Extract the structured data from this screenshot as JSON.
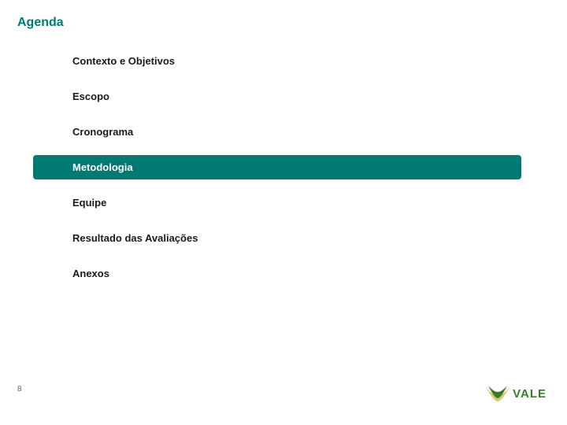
{
  "title": {
    "text": "Agenda",
    "color": "#007a73",
    "fontsize": 16
  },
  "agenda": {
    "items": [
      {
        "label": "Contexto e Objetivos",
        "highlighted": false
      },
      {
        "label": "Escopo",
        "highlighted": false
      },
      {
        "label": "Cronograma",
        "highlighted": false
      },
      {
        "label": "Metodologia",
        "highlighted": true
      },
      {
        "label": "Equipe",
        "highlighted": false
      },
      {
        "label": "Resultado das Avaliações",
        "highlighted": false
      },
      {
        "label": "Anexos",
        "highlighted": false
      }
    ],
    "item_fontsize": 13,
    "item_color": "#1a1a1a",
    "highlight_bg": "#007a73",
    "highlight_fg": "#ffffff",
    "highlight_width": 620
  },
  "footer": {
    "page_number": "8",
    "page_number_fontsize": 10,
    "logo_text": "VALE",
    "logo_text_color": "#3a7a2e",
    "logo_text_fontsize": 15,
    "logo_v_dark": "#3a7a2e",
    "logo_v_light": "#d9c96a"
  },
  "background_color": "#ffffff"
}
